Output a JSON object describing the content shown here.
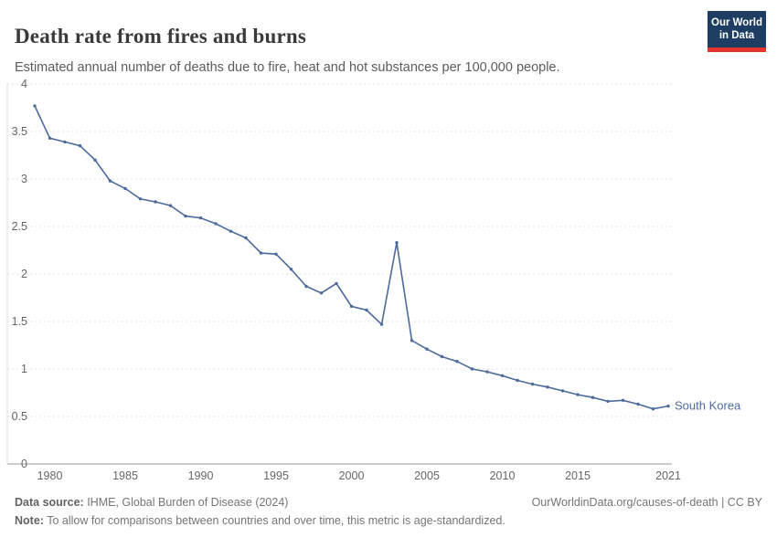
{
  "header": {
    "title": "Death rate from fires and burns",
    "subtitle": "Estimated annual number of deaths due to fire, heat and hot substances per 100,000 people.",
    "logo": {
      "line1": "Our World",
      "line2": "in Data"
    }
  },
  "chart_data": {
    "type": "line",
    "title": "Death rate from fires and burns",
    "subtitle": "Estimated annual number of deaths due to fire, heat and hot substances per 100,000 people.",
    "x": [
      1979,
      1980,
      1981,
      1982,
      1983,
      1984,
      1985,
      1986,
      1987,
      1988,
      1989,
      1990,
      1991,
      1992,
      1993,
      1994,
      1995,
      1996,
      1997,
      1998,
      1999,
      2000,
      2001,
      2002,
      2003,
      2004,
      2005,
      2006,
      2007,
      2008,
      2009,
      2010,
      2011,
      2012,
      2013,
      2014,
      2015,
      2016,
      2017,
      2018,
      2019,
      2020,
      2021
    ],
    "series": [
      {
        "name": "South Korea",
        "color": "#4C6A9C",
        "values": [
          3.77,
          3.43,
          3.39,
          3.35,
          3.2,
          2.98,
          2.9,
          2.79,
          2.76,
          2.72,
          2.61,
          2.59,
          2.53,
          2.45,
          2.38,
          2.22,
          2.21,
          2.05,
          1.87,
          1.8,
          1.9,
          1.66,
          1.62,
          1.47,
          2.33,
          1.3,
          1.21,
          1.13,
          1.08,
          1.0,
          0.97,
          0.93,
          0.88,
          0.84,
          0.81,
          0.77,
          0.73,
          0.7,
          0.66,
          0.67,
          0.63,
          0.58,
          0.61
        ]
      }
    ],
    "x_ticks": [
      1980,
      1985,
      1990,
      1995,
      2000,
      2005,
      2010,
      2015,
      2021
    ],
    "y_ticks": [
      0,
      0.5,
      1,
      1.5,
      2,
      2.5,
      3,
      3.5,
      4
    ],
    "xlim": [
      1979,
      2021
    ],
    "ylim": [
      0,
      4
    ],
    "grid": "horizontal dashed",
    "legend_position": "end-of-line label",
    "end_label": "South Korea"
  },
  "footer": {
    "datasource_label": "Data source:",
    "datasource_text": " IHME, Global Burden of Disease (2024)",
    "link_text": "OurWorldinData.org/causes-of-death | CC BY",
    "note_label": "Note:",
    "note_text": " To allow for comparisons between countries and over time, this metric is age-standardized."
  }
}
